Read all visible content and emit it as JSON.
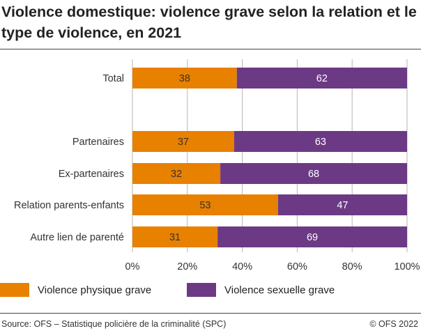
{
  "title": "Violence domestique: violence grave selon la relation et le type de violence, en 2021",
  "source": "Source: OFS – Statistique policière de la criminalité (SPC)",
  "copyright": "© OFS 2022",
  "chart_data": {
    "type": "bar",
    "orientation": "horizontal",
    "stacked": true,
    "title": "Violence domestique: violence grave selon la relation et le type de violence, en 2021",
    "categories": [
      "Total",
      "Partenaires",
      "Ex-partenaires",
      "Relation parents-enfants",
      "Autre lien de parenté"
    ],
    "series": [
      {
        "name": "Violence physique grave",
        "color": "#e88000",
        "values": [
          38,
          37,
          32,
          53,
          31
        ]
      },
      {
        "name": "Violence sexuelle grave",
        "color": "#6c3a84",
        "values": [
          62,
          63,
          68,
          47,
          69
        ]
      }
    ],
    "xlim": [
      0,
      100
    ],
    "xticks": [
      "0%",
      "20%",
      "40%",
      "60%",
      "80%",
      "100%"
    ],
    "grid": true,
    "legend": "bottom"
  }
}
